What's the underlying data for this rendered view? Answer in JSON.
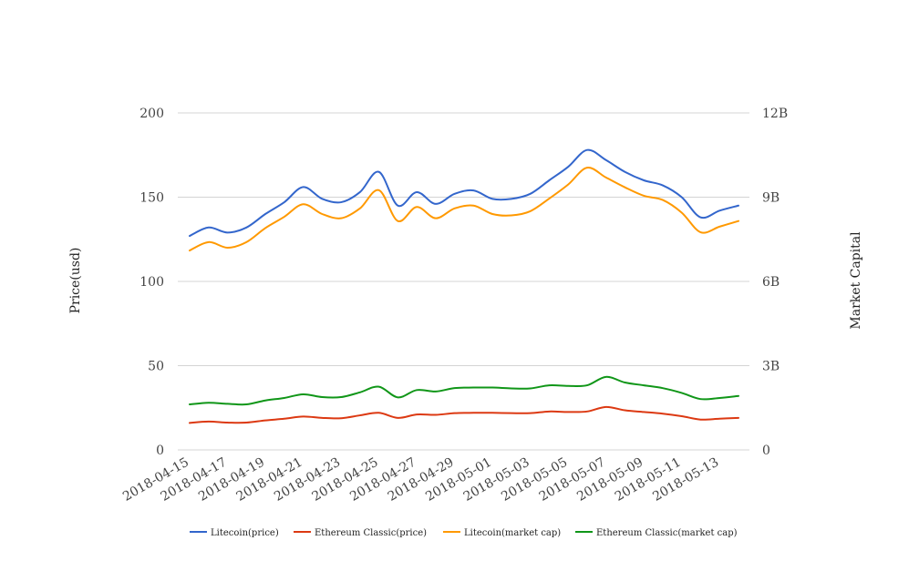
{
  "chart_data": {
    "type": "line",
    "title": "",
    "ylabel": "Price(usd)",
    "y2label": "Market Capital",
    "ylim": [
      0,
      200
    ],
    "y2lim": [
      0,
      12000000000
    ],
    "y_ticks": [
      "0",
      "50",
      "100",
      "150",
      "200"
    ],
    "y2_ticks": [
      "0",
      "3B",
      "6B",
      "9B",
      "12B"
    ],
    "x_tick_labels": [
      "2018-04-15",
      "2018-04-17",
      "2018-04-19",
      "2018-04-21",
      "2018-04-23",
      "2018-04-25",
      "2018-04-27",
      "2018-04-29",
      "2018-05-01",
      "2018-05-03",
      "2018-05-05",
      "2018-05-07",
      "2018-05-09",
      "2018-05-11",
      "2018-05-13"
    ],
    "x": [
      "2018-04-15",
      "2018-04-16",
      "2018-04-17",
      "2018-04-18",
      "2018-04-19",
      "2018-04-20",
      "2018-04-21",
      "2018-04-22",
      "2018-04-23",
      "2018-04-24",
      "2018-04-25",
      "2018-04-26",
      "2018-04-27",
      "2018-04-28",
      "2018-04-29",
      "2018-04-30",
      "2018-05-01",
      "2018-05-02",
      "2018-05-03",
      "2018-05-04",
      "2018-05-05",
      "2018-05-06",
      "2018-05-07",
      "2018-05-08",
      "2018-05-09",
      "2018-05-10",
      "2018-05-11",
      "2018-05-12",
      "2018-05-13",
      "2018-05-14"
    ],
    "grid": true,
    "legend_position": "bottom",
    "series": [
      {
        "name": "Litecoin(price)",
        "axis": "left",
        "color": "#3366cc",
        "values": [
          127,
          132,
          129,
          132,
          140,
          147,
          156,
          149,
          147,
          153,
          165,
          145,
          153,
          146,
          152,
          154,
          149,
          149,
          152,
          160,
          168,
          178,
          172,
          165,
          160,
          157,
          150,
          138,
          142,
          145
        ]
      },
      {
        "name": "Ethereum Classic(price)",
        "axis": "left",
        "color": "#dc3912",
        "values": [
          16,
          16.8,
          16.2,
          16.2,
          17.5,
          18.5,
          19.8,
          19,
          18.8,
          20.5,
          22,
          19,
          21,
          20.8,
          21.8,
          22,
          22,
          21.8,
          21.8,
          22.8,
          22.5,
          22.8,
          25.5,
          23.5,
          22.5,
          21.5,
          20,
          18,
          18.5,
          19
        ]
      },
      {
        "name": "Litecoin(market cap)",
        "axis": "right",
        "color": "#ff9900",
        "values": [
          7100000000,
          7400000000,
          7200000000,
          7400000000,
          7900000000,
          8300000000,
          8750000000,
          8400000000,
          8250000000,
          8600000000,
          9250000000,
          8150000000,
          8650000000,
          8250000000,
          8600000000,
          8700000000,
          8400000000,
          8350000000,
          8500000000,
          8950000000,
          9450000000,
          10050000000,
          9700000000,
          9350000000,
          9050000000,
          8900000000,
          8450000000,
          7750000000,
          7950000000,
          8150000000
        ]
      },
      {
        "name": "Ethereum Classic(market cap)",
        "axis": "right",
        "color": "#109618",
        "values": [
          1620000000,
          1680000000,
          1640000000,
          1620000000,
          1760000000,
          1850000000,
          1980000000,
          1880000000,
          1880000000,
          2050000000,
          2250000000,
          1870000000,
          2130000000,
          2080000000,
          2200000000,
          2220000000,
          2220000000,
          2190000000,
          2190000000,
          2300000000,
          2280000000,
          2300000000,
          2600000000,
          2400000000,
          2300000000,
          2200000000,
          2030000000,
          1810000000,
          1850000000,
          1920000000
        ]
      }
    ]
  }
}
